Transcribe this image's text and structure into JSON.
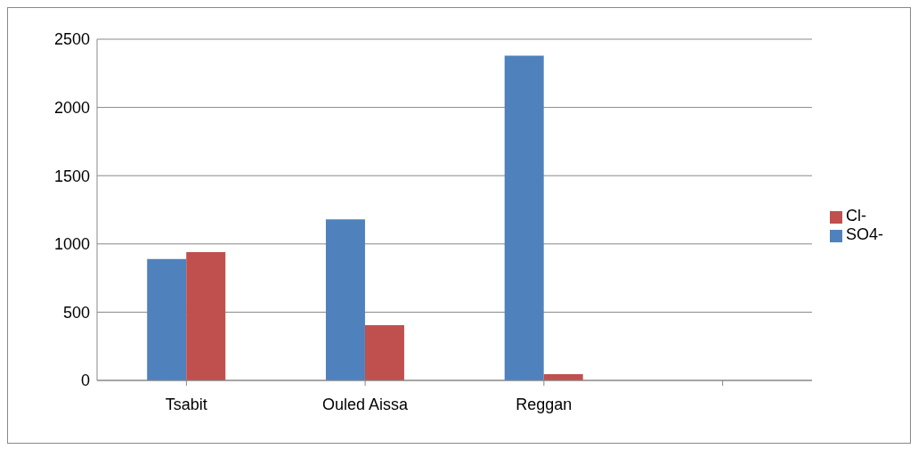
{
  "chart_data": {
    "type": "bar",
    "categories": [
      "Tsabit",
      "Ouled Aissa",
      "Reggan",
      null
    ],
    "series": [
      {
        "name": "SO4-",
        "color": "#4f81bd",
        "values": [
          890,
          1180,
          2380,
          null
        ]
      },
      {
        "name": "Cl-",
        "color": "#c0504d",
        "values": [
          940,
          405,
          45,
          null
        ]
      }
    ],
    "ylim": [
      0,
      2500
    ],
    "yticks": [
      0,
      500,
      1000,
      1500,
      2000,
      2500
    ],
    "grid": "y",
    "legend": "right"
  }
}
